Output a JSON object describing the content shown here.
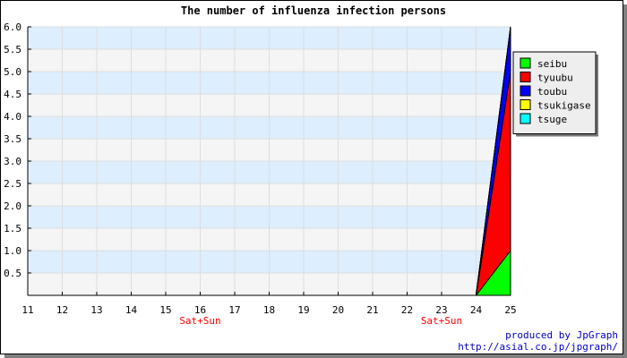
{
  "chart_data": {
    "type": "area",
    "stacked": true,
    "title": "The number of influenza infection persons",
    "x": [
      11,
      12,
      13,
      14,
      15,
      16,
      17,
      18,
      19,
      20,
      21,
      22,
      23,
      24,
      25
    ],
    "x_tick_labels": [
      "11",
      "12",
      "13",
      "14",
      "15",
      "16",
      "17",
      "18",
      "19",
      "20",
      "21",
      "22",
      "23",
      "24",
      "25"
    ],
    "weekend_markers": [
      {
        "x": 16,
        "label": "Sat+Sun"
      },
      {
        "x": 23,
        "label": "Sat+Sun"
      }
    ],
    "ylim": [
      0,
      6
    ],
    "y_ticks": [
      0.5,
      1.0,
      1.5,
      2.0,
      2.5,
      3.0,
      3.5,
      4.0,
      4.5,
      5.0,
      5.5,
      6.0
    ],
    "y_tick_labels": [
      "0.5",
      "1.0",
      "1.5",
      "2.0",
      "2.5",
      "3.0",
      "3.5",
      "4.0",
      "4.5",
      "5.0",
      "5.5",
      "6.0"
    ],
    "grid": true,
    "legend_position": "top-right",
    "series": [
      {
        "name": "seibu",
        "color": "#00ff00",
        "values": [
          0,
          0,
          0,
          0,
          0,
          0,
          0,
          0,
          0,
          0,
          0,
          0,
          0,
          0,
          1
        ]
      },
      {
        "name": "tyuubu",
        "color": "#ff0000",
        "values": [
          0,
          0,
          0,
          0,
          0,
          0,
          0,
          0,
          0,
          0,
          0,
          0,
          0,
          0,
          4
        ]
      },
      {
        "name": "toubu",
        "color": "#0000ff",
        "values": [
          0,
          0,
          0,
          0,
          0,
          0,
          0,
          0,
          0,
          0,
          0,
          0,
          0,
          0,
          1
        ]
      },
      {
        "name": "tsukigase",
        "color": "#ffff00",
        "values": [
          0,
          0,
          0,
          0,
          0,
          0,
          0,
          0,
          0,
          0,
          0,
          0,
          0,
          0,
          0
        ]
      },
      {
        "name": "tsuge",
        "color": "#00ffff",
        "values": [
          0,
          0,
          0,
          0,
          0,
          0,
          0,
          0,
          0,
          0,
          0,
          0,
          0,
          0,
          0
        ]
      }
    ],
    "weekend_color": "#ff0000",
    "band_colors": [
      "#ddeeff",
      "#f5f5f5"
    ]
  },
  "credits": {
    "line1": "produced by JpGraph",
    "line2": "http://asial.co.jp/jpgraph/",
    "color": "#0000cc"
  }
}
